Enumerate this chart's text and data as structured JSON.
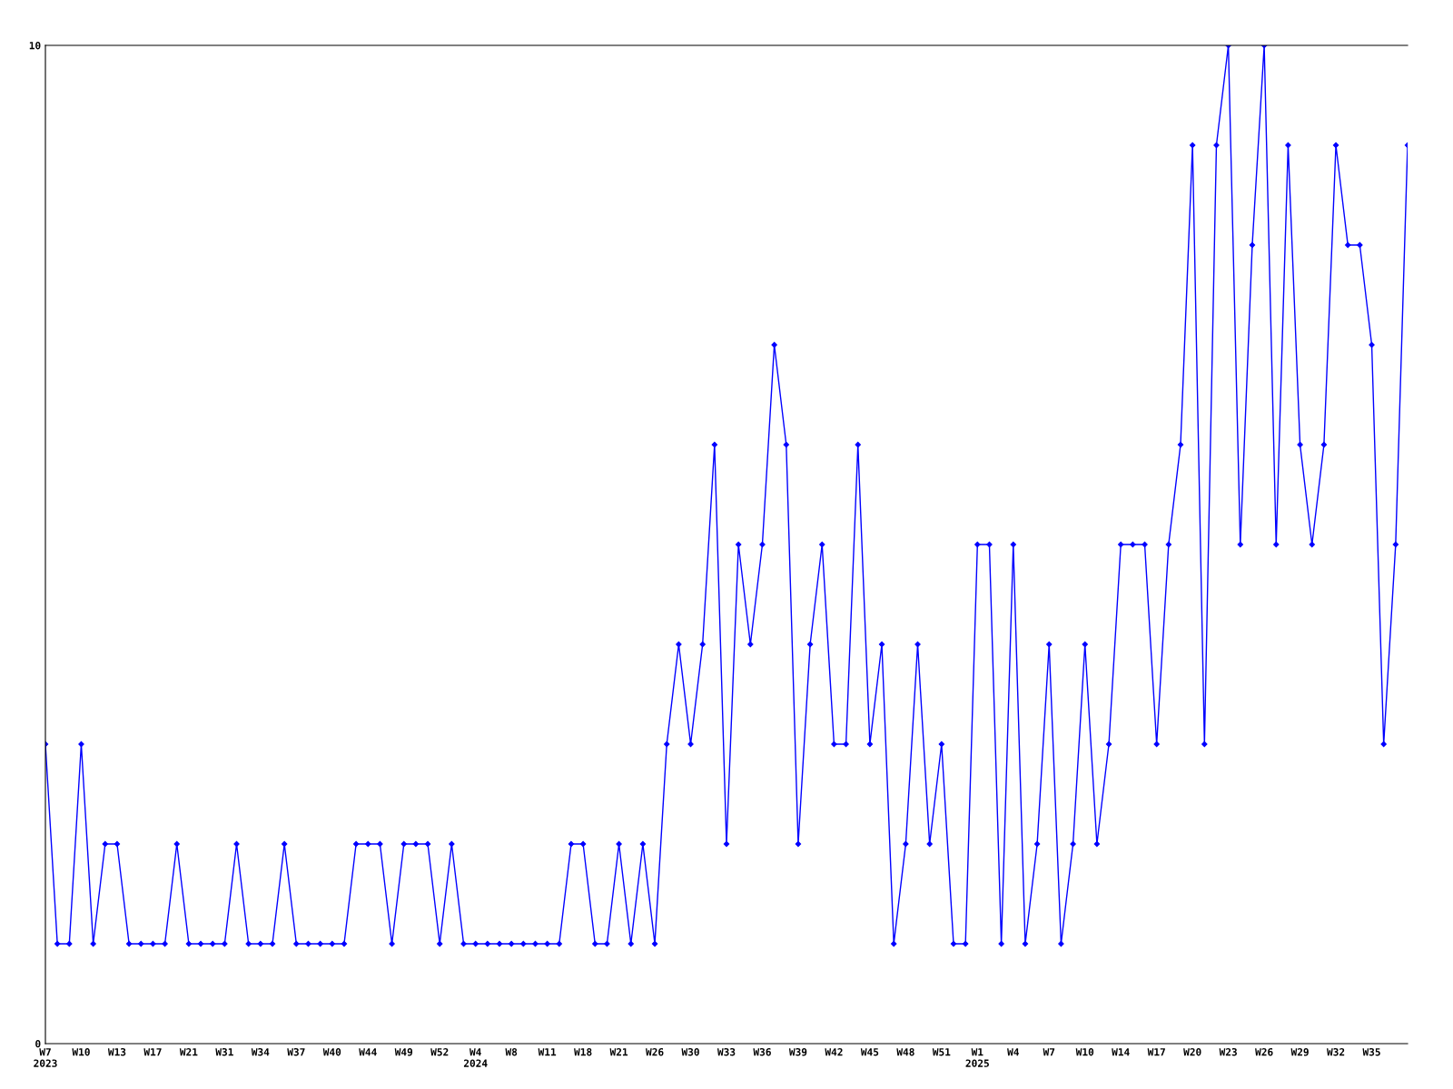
{
  "chart_data": {
    "type": "line",
    "categories": [
      "W7\n2023",
      null,
      null,
      "W10",
      null,
      null,
      "W13",
      null,
      null,
      "W17",
      null,
      null,
      "W21",
      null,
      null,
      "W31",
      null,
      null,
      "W34",
      null,
      null,
      "W37",
      null,
      null,
      "W40",
      null,
      null,
      "W44",
      null,
      null,
      "W49",
      null,
      null,
      "W52",
      null,
      null,
      "W4\n2024",
      null,
      null,
      "W8",
      null,
      null,
      "W11",
      null,
      null,
      "W18",
      null,
      null,
      "W21",
      null,
      null,
      "W26",
      null,
      null,
      "W30",
      null,
      null,
      "W33",
      null,
      null,
      "W36",
      null,
      null,
      "W39",
      null,
      null,
      "W42",
      null,
      null,
      "W45",
      null,
      null,
      "W48",
      null,
      null,
      "W51",
      null,
      null,
      "W1\n2025",
      null,
      null,
      "W4",
      null,
      null,
      "W7",
      null,
      null,
      "W10",
      null,
      null,
      "W14",
      null,
      null,
      "W17",
      null,
      null,
      "W20",
      null,
      null,
      "W23",
      null,
      null,
      "W26",
      null,
      null,
      "W29",
      null,
      null,
      "W32",
      null,
      null,
      "W35",
      null,
      null,
      null
    ],
    "series": [
      {
        "color": "#0000ff",
        "values": [
          3,
          1,
          1,
          3,
          1,
          2,
          2,
          1,
          1,
          1,
          1,
          2,
          1,
          1,
          1,
          1,
          2,
          1,
          1,
          1,
          2,
          1,
          1,
          1,
          1,
          1,
          2,
          2,
          2,
          1,
          2,
          2,
          2,
          1,
          2,
          1,
          1,
          1,
          1,
          1,
          1,
          1,
          1,
          1,
          2,
          2,
          1,
          1,
          2,
          1,
          2,
          1,
          3,
          4,
          3,
          4,
          6,
          2,
          5,
          4,
          5,
          7,
          6,
          2,
          4,
          5,
          3,
          3,
          6,
          3,
          4,
          1,
          2,
          4,
          2,
          3,
          1,
          1,
          5,
          5,
          1,
          5,
          1,
          2,
          4,
          1,
          2,
          4,
          2,
          3,
          5,
          5,
          5,
          3,
          5,
          6,
          9,
          3,
          9,
          10,
          5,
          8,
          10,
          5,
          9,
          6,
          5,
          6,
          9,
          8,
          8,
          7,
          3,
          5,
          9
        ]
      }
    ],
    "ylim": [
      0,
      10
    ],
    "yticks": [
      0,
      10
    ],
    "marker": "diamond",
    "line_style": "solid"
  }
}
